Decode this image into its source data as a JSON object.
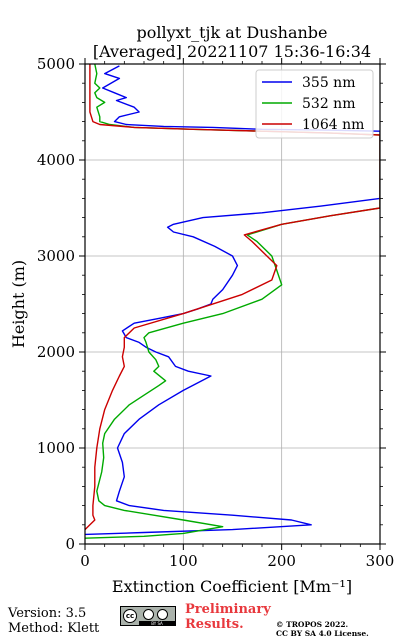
{
  "chart_data": {
    "type": "line",
    "title": "pollyxt_tjk at Dushanbe",
    "subtitle": "[Averaged] 20221107 15:36-16:34",
    "xlabel": "Extinction Coefficient [Mm⁻¹]",
    "ylabel": "Height (m)",
    "xlim": [
      0,
      300
    ],
    "ylim": [
      0,
      5000
    ],
    "xticks": [
      "0",
      "100",
      "200",
      "300"
    ],
    "yticks": [
      "0",
      "1000",
      "2000",
      "3000",
      "4000",
      "5000"
    ],
    "grid": true,
    "legend_position": "top-right",
    "series": [
      {
        "name": "355 nm",
        "color": "#0000ee",
        "x": [
          0,
          60,
          150,
          230,
          210,
          150,
          80,
          45,
          32,
          35,
          40,
          38,
          33,
          40,
          55,
          75,
          100,
          128,
          105,
          92,
          85,
          72,
          62,
          55,
          42,
          38,
          50,
          75,
          100,
          115,
          128,
          130,
          140,
          150,
          155,
          150,
          132,
          110,
          90,
          84,
          90,
          120,
          180,
          240,
          300,
          300,
          250,
          180,
          130,
          80,
          42,
          30,
          35,
          55,
          50,
          32,
          42,
          30,
          18,
          35,
          20,
          35
        ],
        "y": [
          100,
          120,
          150,
          200,
          250,
          300,
          350,
          400,
          450,
          550,
          700,
          850,
          1000,
          1150,
          1300,
          1450,
          1600,
          1750,
          1800,
          1850,
          1950,
          2000,
          2050,
          2100,
          2150,
          2220,
          2300,
          2350,
          2400,
          2450,
          2500,
          2550,
          2650,
          2800,
          2900,
          3000,
          3100,
          3200,
          3250,
          3300,
          3330,
          3400,
          3450,
          3520,
          3600,
          4300,
          4310,
          4320,
          4340,
          4350,
          4370,
          4400,
          4450,
          4500,
          4550,
          4620,
          4650,
          4700,
          4750,
          4850,
          4900,
          4980
        ]
      },
      {
        "name": "532 nm",
        "color": "#00aa00",
        "x": [
          0,
          60,
          100,
          140,
          100,
          70,
          40,
          20,
          14,
          12,
          17,
          19,
          18,
          20,
          30,
          45,
          60,
          75,
          82,
          70,
          75,
          72,
          65,
          62,
          60,
          65,
          100,
          140,
          180,
          200,
          195,
          190,
          175,
          165,
          200,
          250,
          300,
          300,
          250,
          180,
          110,
          50,
          25,
          15,
          15,
          12,
          20,
          12,
          10,
          15,
          10,
          12,
          10
        ],
        "y": [
          60,
          80,
          110,
          180,
          250,
          300,
          350,
          400,
          450,
          550,
          750,
          900,
          1050,
          1150,
          1300,
          1450,
          1550,
          1650,
          1700,
          1800,
          1850,
          1920,
          2000,
          2100,
          2150,
          2200,
          2300,
          2400,
          2550,
          2700,
          2850,
          3000,
          3150,
          3220,
          3330,
          3420,
          3500,
          4260,
          4280,
          4300,
          4320,
          4340,
          4370,
          4400,
          4450,
          4550,
          4600,
          4650,
          4700,
          4750,
          4800,
          4900,
          5000
        ]
      },
      {
        "name": "1064 nm",
        "color": "#cc0000",
        "x": [
          0,
          5,
          10,
          8,
          8,
          10,
          10,
          12,
          15,
          20,
          28,
          35,
          40,
          38,
          40,
          40,
          50,
          100,
          160,
          190,
          195,
          185,
          170,
          162,
          200,
          250,
          300,
          300,
          250,
          180,
          110,
          50,
          15,
          8,
          5,
          5,
          5,
          5
        ],
        "y": [
          150,
          200,
          250,
          300,
          400,
          600,
          800,
          1000,
          1200,
          1400,
          1600,
          1750,
          1850,
          1950,
          2050,
          2150,
          2250,
          2400,
          2600,
          2750,
          2900,
          3000,
          3150,
          3220,
          3330,
          3420,
          3500,
          4260,
          4280,
          4300,
          4320,
          4340,
          4370,
          4400,
          4500,
          4700,
          4900,
          5000
        ]
      }
    ]
  },
  "footer": {
    "version": "Version: 3.5",
    "method": "Method: Klett",
    "preliminary_line1": "Preliminary",
    "preliminary_line2": "Results.",
    "copyright_line1": "© TROPOS 2022.",
    "copyright_line2": "CC BY SA 4.0 License.",
    "license_badge": {
      "cc": "cc",
      "strip": "BY SA"
    }
  }
}
